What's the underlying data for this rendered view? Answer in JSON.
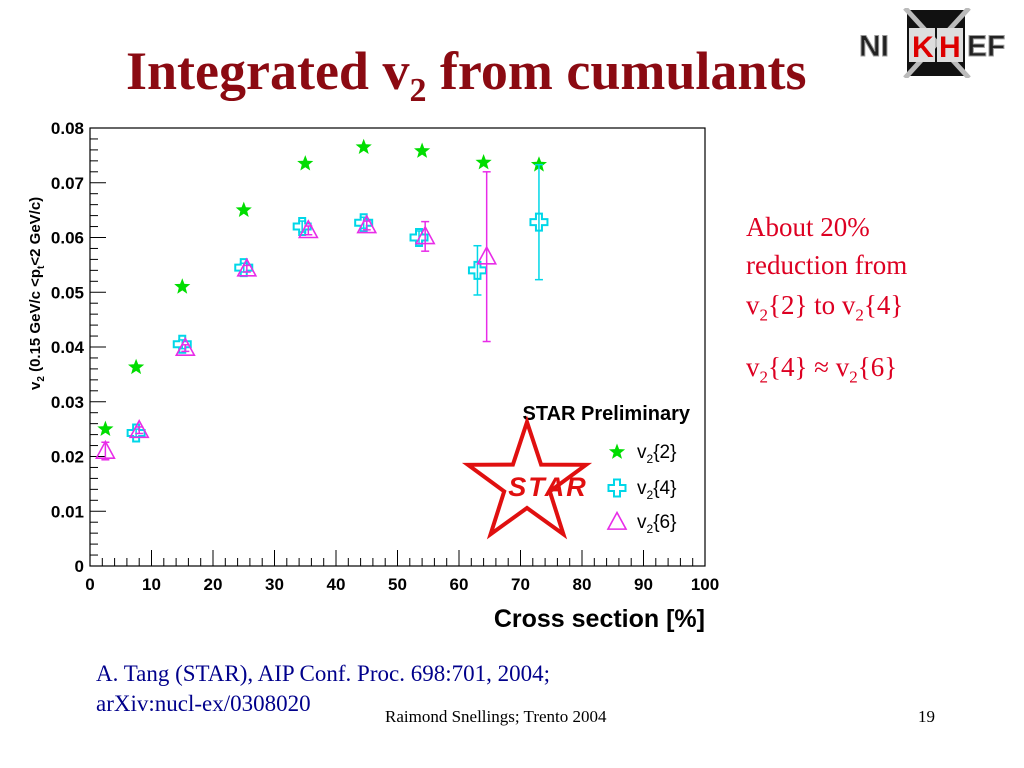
{
  "slide": {
    "title_main": "Integrated v",
    "title_sub": "2",
    "title_rest": " from cumulants",
    "logo_text": [
      "NI",
      "K",
      "H",
      "EF"
    ],
    "note": {
      "line1": "About 20%",
      "line2": "reduction from",
      "line3_a": "v",
      "line3_a_sub": "2",
      "line3_b": "{2} to v",
      "line3_b_sub": "2",
      "line3_c": "{4}",
      "line4_a": "v",
      "line4_a_sub": "2",
      "line4_b": "{4} ≈ v",
      "line4_b_sub": "2",
      "line4_c": "{6}"
    },
    "reference_line1": "A. Tang (STAR), AIP Conf. Proc. 698:701, 2004;",
    "reference_line2": "arXiv:nucl-ex/0308020",
    "footer_left": "Raimond Snellings; Trento 2004",
    "footer_page": "19",
    "colors": {
      "title": "#8b0a12",
      "note": "#dd0022",
      "reference": "#00008b"
    }
  },
  "chart_data": {
    "type": "scatter",
    "xlabel": "Cross section [%]",
    "ylabel": "v2 (0.15 GeV/c <pt<2 GeV/c)",
    "xlim": [
      0,
      100
    ],
    "ylim": [
      0,
      0.08
    ],
    "xticks": [
      "0",
      "10",
      "20",
      "30",
      "40",
      "50",
      "60",
      "70",
      "80",
      "90",
      "100"
    ],
    "yticks": [
      "0",
      "0.01",
      "0.02",
      "0.03",
      "0.04",
      "0.05",
      "0.06",
      "0.07",
      "0.08"
    ],
    "grid": false,
    "legend_title": "STAR Preliminary",
    "legend_position": "bottom-right",
    "logo_text": "STAR",
    "series": [
      {
        "name": "v2{2}",
        "label_base": "v",
        "label_sub": "2",
        "label_rest": "{2}",
        "marker": "star",
        "color": "#00dd00",
        "points": [
          {
            "x": 2.5,
            "y": 0.025
          },
          {
            "x": 7.5,
            "y": 0.0363
          },
          {
            "x": 15,
            "y": 0.051
          },
          {
            "x": 25,
            "y": 0.065
          },
          {
            "x": 35,
            "y": 0.0735
          },
          {
            "x": 44.5,
            "y": 0.0765
          },
          {
            "x": 54,
            "y": 0.0758
          },
          {
            "x": 64,
            "y": 0.0737
          },
          {
            "x": 73,
            "y": 0.0733
          }
        ]
      },
      {
        "name": "v2{4}",
        "label_base": "v",
        "label_sub": "2",
        "label_rest": "{4}",
        "marker": "cross-open",
        "color": "#00d7e8",
        "points": [
          {
            "x": 7.5,
            "y": 0.0243,
            "err": 0.0007
          },
          {
            "x": 15,
            "y": 0.0405,
            "err": 0.0008
          },
          {
            "x": 25,
            "y": 0.0545,
            "err": 0.0008
          },
          {
            "x": 34.5,
            "y": 0.062,
            "err": 0.001
          },
          {
            "x": 44.5,
            "y": 0.0627,
            "err": 0.001
          },
          {
            "x": 53.5,
            "y": 0.06,
            "err": 0.0012
          },
          {
            "x": 63,
            "y": 0.054,
            "err": 0.0045
          },
          {
            "x": 73,
            "y": 0.0628,
            "err": 0.0105
          }
        ]
      },
      {
        "name": "v2{6}",
        "label_base": "v",
        "label_sub": "2",
        "label_rest": "{6}",
        "marker": "triangle-open",
        "color": "#e82ce8",
        "points": [
          {
            "x": 2.5,
            "y": 0.021,
            "err": 0.0016
          },
          {
            "x": 8,
            "y": 0.0248,
            "err": 0.0006
          },
          {
            "x": 15.5,
            "y": 0.0398,
            "err": 0.0006
          },
          {
            "x": 25.5,
            "y": 0.0543,
            "err": 0.0006
          },
          {
            "x": 35.5,
            "y": 0.0613,
            "err": 0.0008
          },
          {
            "x": 45,
            "y": 0.0622,
            "err": 0.0008
          },
          {
            "x": 54.5,
            "y": 0.0602,
            "err": 0.0027
          },
          {
            "x": 64.5,
            "y": 0.0565,
            "err": 0.0155
          }
        ]
      }
    ]
  }
}
